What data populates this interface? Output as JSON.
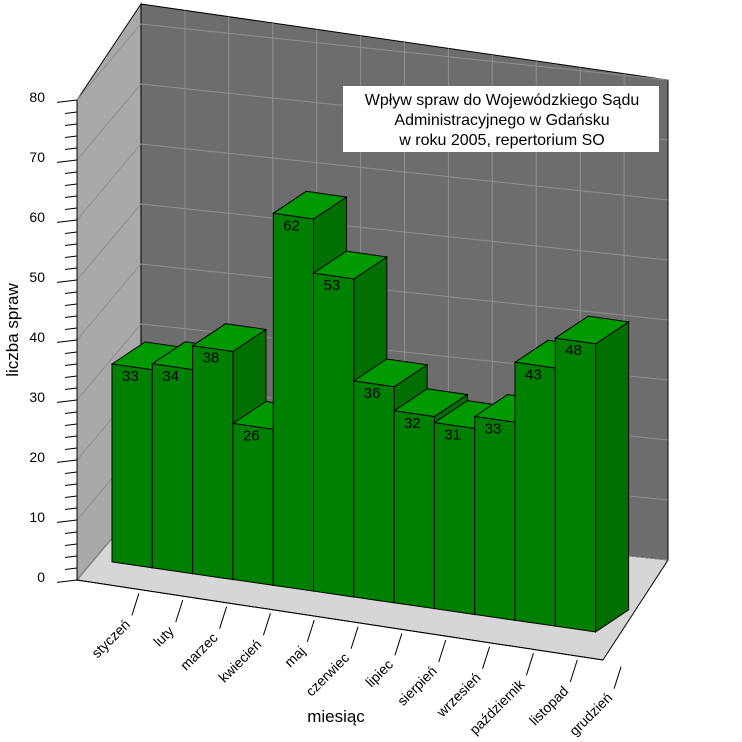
{
  "chart_data": {
    "type": "bar",
    "title": "Wpływ spraw do Wojewódzkiego Sądu Administracyjnego w Gdańsku w roku 2005, repertorium SO",
    "title_lines": [
      "Wpływ spraw do Wojewódzkiego Sądu",
      "Administracyjnego w Gdańsku",
      "w roku 2005, repertorium SO"
    ],
    "xlabel": "miesiąc",
    "ylabel": "liczba spraw",
    "ylim": [
      0,
      80
    ],
    "yticks": [
      "0",
      "10",
      "20",
      "30",
      "40",
      "50",
      "60",
      "70",
      "80"
    ],
    "categories": [
      "styczeń",
      "luty",
      "marzec",
      "kwiecień",
      "maj",
      "czerwiec",
      "lipiec",
      "sierpień",
      "wrzesień",
      "październik",
      "listopad",
      "grudzień"
    ],
    "values": [
      33,
      34,
      38,
      26,
      62,
      53,
      36,
      32,
      31,
      33,
      43,
      48
    ],
    "data_labels": [
      "33",
      "34",
      "38",
      "26",
      "62",
      "53",
      "36",
      "32",
      "31",
      "33",
      "43",
      "48"
    ],
    "grid": true,
    "legend": "none",
    "style": "3d",
    "colors": {
      "bar_front": "#008000",
      "bar_top": "#009900",
      "bar_side": "#007000",
      "back_wall": "#6d6d6d",
      "side_wall": "#a9a9a9",
      "floor": "#d6d6d6",
      "grid": "#8f8f8f"
    }
  }
}
